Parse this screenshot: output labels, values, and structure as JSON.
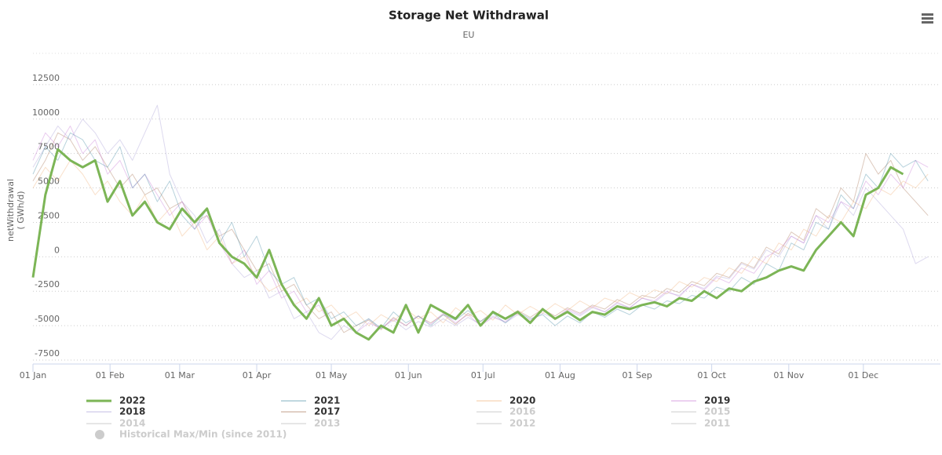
{
  "chart_data": {
    "type": "line",
    "title": "Storage Net Withdrawal",
    "subtitle": "EU",
    "ylabel": [
      "netWithdrawal",
      "( GWh/d)"
    ],
    "xlim": [
      1,
      366
    ],
    "xticks": [
      {
        "value": 1,
        "label": "01 Jan"
      },
      {
        "value": 32,
        "label": "01 Feb"
      },
      {
        "value": 60,
        "label": "01 Mar"
      },
      {
        "value": 91,
        "label": "01 Apr"
      },
      {
        "value": 121,
        "label": "01 May"
      },
      {
        "value": 152,
        "label": "01 Jun"
      },
      {
        "value": 182,
        "label": "01 Jul"
      },
      {
        "value": 213,
        "label": "01 Aug"
      },
      {
        "value": 244,
        "label": "01 Sep"
      },
      {
        "value": 274,
        "label": "01 Oct"
      },
      {
        "value": 305,
        "label": "01 Nov"
      },
      {
        "value": 335,
        "label": "01 Dec"
      }
    ],
    "ylim": [
      -7500,
      15000
    ],
    "yticks": [
      -7500,
      -5000,
      -2500,
      0,
      2500,
      5000,
      7500,
      10000,
      12500
    ],
    "grid": true,
    "x": [
      1,
      6,
      11,
      16,
      21,
      26,
      31,
      36,
      41,
      46,
      51,
      56,
      61,
      66,
      71,
      76,
      81,
      86,
      91,
      96,
      101,
      106,
      111,
      116,
      121,
      126,
      131,
      136,
      141,
      146,
      151,
      156,
      161,
      166,
      171,
      176,
      181,
      186,
      191,
      196,
      201,
      206,
      211,
      216,
      221,
      226,
      231,
      236,
      241,
      246,
      251,
      256,
      261,
      266,
      271,
      276,
      281,
      286,
      291,
      296,
      301,
      306,
      311,
      316,
      321,
      326,
      331,
      336,
      341,
      346,
      351,
      356,
      361
    ],
    "series": [
      {
        "name": "2022",
        "color": "#7cb556",
        "width": 3,
        "opacity": 1,
        "values": [
          -1500,
          4500,
          7800,
          7000,
          6500,
          7000,
          4000,
          5500,
          3000,
          4000,
          2500,
          2000,
          3500,
          2500,
          3500,
          1000,
          0,
          -500,
          -1500,
          500,
          -2000,
          -3500,
          -4500,
          -3000,
          -5000,
          -4500,
          -5500,
          -6000,
          -5000,
          -5500,
          -3500,
          -5500,
          -3500,
          -4000,
          -4500,
          -3500,
          -5000,
          -4000,
          -4500,
          -4000,
          -4800,
          -3800,
          -4500,
          -4000,
          -4600,
          -4000,
          -4200,
          -3600,
          -3800,
          -3500,
          -3300,
          -3600,
          -3000,
          -3200,
          -2500,
          -3000,
          -2300,
          -2500,
          -1800,
          -1500,
          -1000,
          -700,
          -1000,
          500,
          1500,
          2500,
          1500,
          4500,
          5000,
          6500,
          6000,
          null,
          null
        ]
      },
      {
        "name": "2021",
        "color": "#4a8fa8",
        "width": 1,
        "opacity": 0.4,
        "values": [
          6000,
          8000,
          7000,
          9000,
          8500,
          7000,
          6500,
          8000,
          5000,
          6000,
          4000,
          5500,
          3000,
          2000,
          3500,
          1000,
          2500,
          0,
          1500,
          -1000,
          -2000,
          -1500,
          -3500,
          -3000,
          -4500,
          -4000,
          -5000,
          -4500,
          -5200,
          -4000,
          -4800,
          -4300,
          -5000,
          -4200,
          -4600,
          -3900,
          -4700,
          -4100,
          -4800,
          -4000,
          -4500,
          -4200,
          -5000,
          -4300,
          -4800,
          -4000,
          -4400,
          -3800,
          -4200,
          -3500,
          -3800,
          -3200,
          -3400,
          -2800,
          -3000,
          -2200,
          -2500,
          -1500,
          -2000,
          -500,
          -1000,
          1000,
          500,
          2500,
          2000,
          4500,
          3500,
          6000,
          5000,
          7500,
          6500,
          7000,
          5500
        ]
      },
      {
        "name": "2020",
        "color": "#f0b27a",
        "width": 1,
        "opacity": 0.4,
        "values": [
          5000,
          6500,
          5500,
          7000,
          6000,
          4500,
          5500,
          4000,
          3000,
          4500,
          2500,
          3500,
          1500,
          2500,
          500,
          1500,
          -500,
          0,
          -1500,
          -2500,
          -2000,
          -3500,
          -3000,
          -4000,
          -3500,
          -4500,
          -4000,
          -5000,
          -4200,
          -4700,
          -3800,
          -4500,
          -4000,
          -4800,
          -3700,
          -4300,
          -3900,
          -4600,
          -3500,
          -4200,
          -3600,
          -4100,
          -3400,
          -3900,
          -3200,
          -3700,
          -3000,
          -3300,
          -2600,
          -3000,
          -2400,
          -2700,
          -1800,
          -2200,
          -1500,
          -1800,
          -800,
          -1200,
          0,
          -500,
          1000,
          500,
          2000,
          1500,
          3000,
          2500,
          4000,
          3500,
          5000,
          4500,
          5500,
          5000,
          6000
        ]
      },
      {
        "name": "2019",
        "color": "#c77cd6",
        "width": 1,
        "opacity": 0.4,
        "values": [
          7000,
          9000,
          8000,
          9500,
          7500,
          8500,
          6000,
          7000,
          5000,
          6000,
          4500,
          3000,
          4000,
          2000,
          3000,
          1000,
          -500,
          500,
          -2000,
          -1000,
          -3000,
          -2500,
          -4000,
          -3500,
          -5000,
          -4500,
          -5500,
          -4800,
          -5200,
          -4500,
          -5000,
          -4300,
          -4900,
          -4100,
          -4800,
          -4200,
          -5000,
          -4400,
          -4700,
          -4100,
          -4600,
          -3900,
          -4500,
          -3800,
          -4200,
          -3600,
          -4000,
          -3300,
          -3700,
          -3000,
          -3200,
          -2500,
          -2900,
          -2000,
          -2400,
          -1500,
          -1900,
          -800,
          -1200,
          0,
          500,
          1500,
          1000,
          3000,
          2500,
          4000,
          3500,
          5500,
          4500,
          6000,
          5000,
          7000,
          6500
        ]
      },
      {
        "name": "2018",
        "color": "#a9a0d8",
        "width": 1,
        "opacity": 0.4,
        "values": [
          6500,
          8000,
          9500,
          8500,
          10000,
          9000,
          7500,
          8500,
          7000,
          9000,
          11000,
          6000,
          4000,
          3000,
          1000,
          2000,
          -500,
          -1500,
          -1000,
          -3000,
          -2500,
          -4500,
          -4000,
          -5500,
          -6000,
          -5000,
          -5500,
          -4500,
          -5200,
          -4600,
          -5300,
          -4700,
          -5100,
          -4500,
          -5000,
          -4400,
          -4900,
          -4300,
          -4800,
          -4200,
          -4700,
          -4100,
          -4500,
          -3900,
          -4300,
          -3700,
          -4000,
          -3400,
          -3700,
          -3000,
          -3300,
          -2600,
          -2800,
          -2000,
          -2300,
          -1400,
          -1600,
          -500,
          -900,
          500,
          0,
          1500,
          1000,
          3000,
          2000,
          4000,
          3000,
          5000,
          4000,
          3000,
          2000,
          -500,
          0
        ]
      },
      {
        "name": "2017",
        "color": "#a9775a",
        "width": 1,
        "opacity": 0.4,
        "values": [
          5500,
          7000,
          9000,
          8500,
          7000,
          8000,
          6500,
          5000,
          6000,
          4500,
          5000,
          3500,
          4000,
          2500,
          3000,
          1500,
          2000,
          500,
          -1000,
          -500,
          -2500,
          -2000,
          -3500,
          -4500,
          -4000,
          -5500,
          -5000,
          -4600,
          -5300,
          -4400,
          -5000,
          -4300,
          -4800,
          -4200,
          -4900,
          -4100,
          -4700,
          -4000,
          -4500,
          -3900,
          -4400,
          -3800,
          -4300,
          -3700,
          -4100,
          -3500,
          -3800,
          -3100,
          -3500,
          -2800,
          -3000,
          -2300,
          -2600,
          -1800,
          -2100,
          -1200,
          -1500,
          -400,
          -800,
          700,
          200,
          1800,
          1200,
          3500,
          2800,
          5000,
          4000,
          7500,
          6000,
          7000,
          5000,
          4000,
          3000
        ]
      },
      {
        "name": "2016",
        "visible": false
      },
      {
        "name": "2015",
        "visible": false
      },
      {
        "name": "2014",
        "visible": false
      },
      {
        "name": "2013",
        "visible": false
      },
      {
        "name": "2012",
        "visible": false
      },
      {
        "name": "2011",
        "visible": false
      }
    ],
    "historical": {
      "name": "Historical Max/Min (since 2011)",
      "visible": false
    }
  }
}
